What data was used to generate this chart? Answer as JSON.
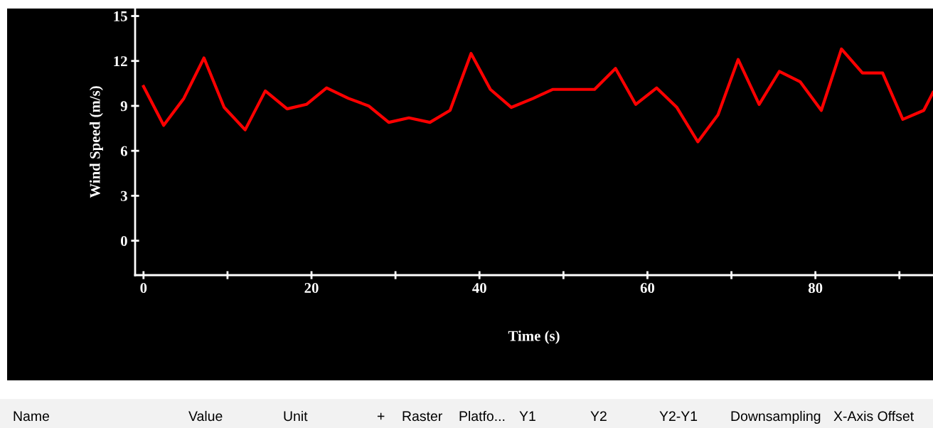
{
  "chart_data": {
    "type": "line",
    "xlabel": "Time (s)",
    "ylabel": "Wind Speed (m/s)",
    "x": [
      0,
      2.4,
      4.8,
      7.2,
      9.6,
      12.1,
      14.5,
      17.1,
      19.4,
      21.8,
      24.4,
      26.8,
      29.2,
      31.6,
      34.1,
      36.5,
      39.0,
      41.3,
      43.8,
      46.4,
      48.7,
      51.1,
      53.7,
      56.2,
      58.6,
      61.1,
      63.5,
      66.0,
      68.4,
      70.8,
      73.3,
      75.7,
      78.2,
      80.7,
      83.1,
      85.6,
      88.0,
      90.4,
      92.9,
      94
    ],
    "series": [
      {
        "color": "#ff0000",
        "values": [
          10.3,
          7.7,
          9.5,
          12.2,
          8.9,
          7.4,
          10.0,
          8.8,
          9.1,
          10.2,
          9.5,
          9.0,
          7.9,
          8.2,
          7.9,
          8.7,
          12.5,
          10.1,
          8.9,
          9.5,
          10.1,
          10.1,
          10.1,
          11.5,
          9.1,
          10.2,
          8.9,
          6.6,
          8.4,
          12.1,
          9.1,
          11.3,
          10.6,
          8.7,
          12.8,
          11.2,
          11.2,
          8.1,
          8.7,
          9.9
        ]
      }
    ],
    "xlim": [
      -1,
      94
    ],
    "ylim": [
      -2.3,
      15.5
    ],
    "xticks": [
      0,
      {
        "value": 10,
        "label": null
      },
      20,
      {
        "value": 30,
        "label": null
      },
      40,
      {
        "value": 50,
        "label": null
      },
      60,
      {
        "value": 70,
        "label": null
      },
      80,
      {
        "value": 90,
        "label": null
      }
    ],
    "yticks": [
      0,
      3,
      6,
      9,
      12,
      15
    ],
    "grid": false,
    "legend": false,
    "marker": "none",
    "line_style": "solid",
    "annotations": [
      "Name",
      "Value",
      "Unit",
      "+",
      "Raster",
      "Platfo...",
      "Y1",
      "Y2",
      "Y2-Y1",
      "Downsampling",
      "X-Axis Offset"
    ]
  }
}
